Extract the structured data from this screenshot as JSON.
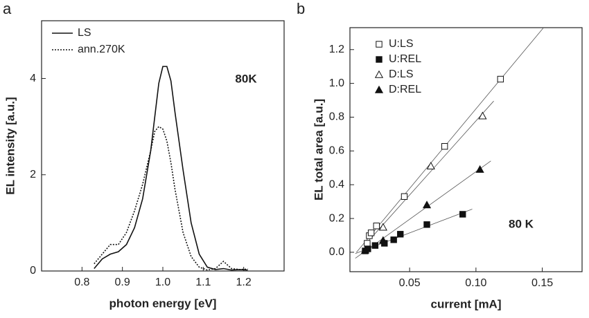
{
  "chart_data": [
    {
      "type": "line",
      "panel_label": "a",
      "x_label": "photon energy [eV]",
      "y_label": "EL intensity [a.u.]",
      "annotation": "80K",
      "xlim": [
        0.7,
        1.3
      ],
      "ylim": [
        0,
        5.2
      ],
      "xticks": [
        0.8,
        0.9,
        {
          "value": 1.0,
          "label": "1.0"
        },
        1.1,
        1.2
      ],
      "yticks": [
        0,
        2,
        4
      ],
      "x": [
        0.83,
        0.85,
        0.87,
        0.89,
        0.91,
        0.93,
        0.95,
        0.97,
        0.98,
        0.99,
        1.0,
        1.01,
        1.02,
        1.03,
        1.05,
        1.07,
        1.09,
        1.11,
        1.13,
        1.15,
        1.17,
        1.19,
        1.21
      ],
      "series": [
        {
          "name": "LS",
          "color": "#111111",
          "dash": "solid",
          "values": [
            0.05,
            0.25,
            0.35,
            0.4,
            0.55,
            0.9,
            1.5,
            2.5,
            3.2,
            3.9,
            4.25,
            4.25,
            3.95,
            3.3,
            2.1,
            1.0,
            0.35,
            0.08,
            0.03,
            0.05,
            0.02,
            0.03,
            0.02
          ]
        },
        {
          "name": "ann.270K",
          "color": "#111111",
          "dash": "dotted",
          "values": [
            0.15,
            0.35,
            0.55,
            0.55,
            0.8,
            1.25,
            1.8,
            2.5,
            2.9,
            3.0,
            2.95,
            2.7,
            2.25,
            1.7,
            0.8,
            0.3,
            0.08,
            0.02,
            0.05,
            0.2,
            0.05,
            0.03,
            0.04
          ]
        }
      ]
    },
    {
      "type": "scatter",
      "panel_label": "b",
      "x_label": "current [mA]",
      "y_label": "EL total area [a.u.]",
      "annotation": "80 K",
      "xlim": [
        0.005,
        0.18
      ],
      "ylim": [
        -0.115,
        1.33
      ],
      "xticks": [
        0.05,
        {
          "value": 0.1,
          "label": "0.10"
        },
        0.15
      ],
      "yticks": [
        {
          "value": 0,
          "label": "0.0"
        },
        0.2,
        0.4,
        0.6,
        0.8,
        {
          "value": 1,
          "label": "1.0"
        },
        1.2
      ],
      "fit_lines": true,
      "series": [
        {
          "name": "U:LS",
          "color": "#111111",
          "marker": "square-open",
          "x": [
            0.018,
            0.0196,
            0.021,
            0.025,
            0.046,
            0.0764,
            0.1185
          ],
          "values": [
            0.053,
            0.098,
            0.115,
            0.156,
            0.33,
            0.627,
            1.025
          ]
        },
        {
          "name": "U:REL",
          "color": "#111111",
          "marker": "square-filled",
          "x": [
            0.0165,
            0.0185,
            0.024,
            0.031,
            0.038,
            0.043,
            0.063,
            0.09
          ],
          "values": [
            0.008,
            0.02,
            0.04,
            0.053,
            0.074,
            0.107,
            0.164,
            0.225
          ]
        },
        {
          "name": "D:LS",
          "color": "#111111",
          "marker": "triangle-open",
          "x": [
            0.03,
            0.066,
            0.105
          ],
          "values": [
            0.148,
            0.51,
            0.807
          ]
        },
        {
          "name": "D:REL",
          "color": "#111111",
          "marker": "triangle-filled",
          "x": [
            0.0165,
            0.03,
            0.063,
            0.103
          ],
          "values": [
            0.012,
            0.07,
            0.28,
            0.49
          ]
        }
      ]
    }
  ]
}
